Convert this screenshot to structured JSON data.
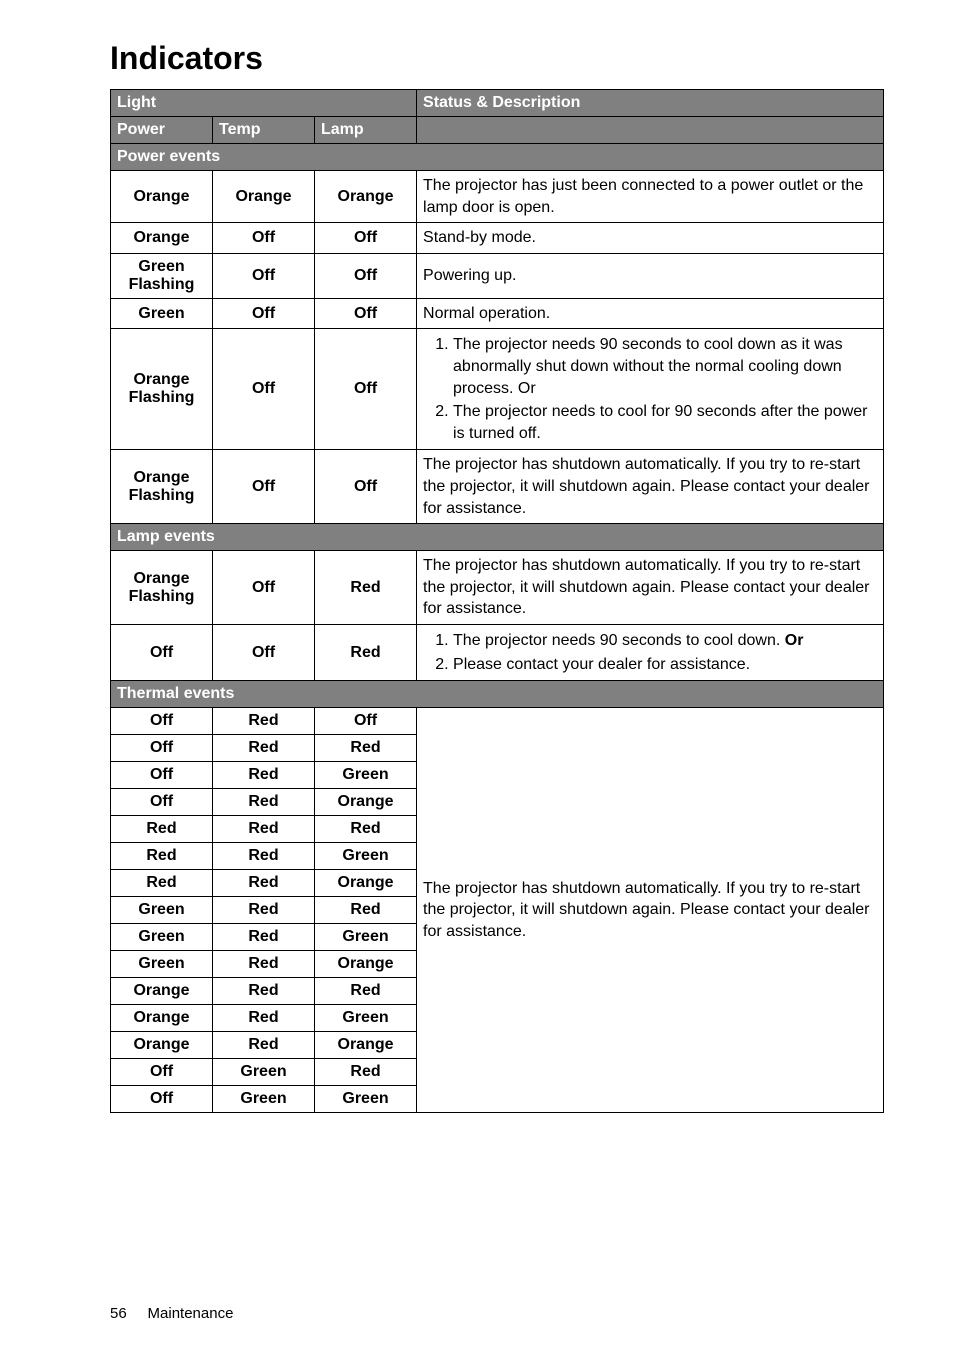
{
  "title": "Indicators",
  "footer": {
    "page_no": "56",
    "chapter": "Maintenance"
  },
  "headers": {
    "light": "Light",
    "status": "Status & Description",
    "power": "Power",
    "temp": "Temp",
    "lamp": "Lamp"
  },
  "sections": {
    "power_events": "Power events",
    "lamp_events": "Lamp events",
    "thermal_events": "Thermal events"
  },
  "power_rows": [
    {
      "p": "Orange",
      "t": "Orange",
      "l": "Orange",
      "d": "The projector has just been connected to a power outlet or the lamp door is open."
    },
    {
      "p": "Orange",
      "t": "Off",
      "l": "Off",
      "d": "Stand-by mode."
    },
    {
      "p": "Green Flashing",
      "t": "Off",
      "l": "Off",
      "d": "Powering up."
    },
    {
      "p": "Green",
      "t": "Off",
      "l": "Off",
      "d": "Normal operation."
    }
  ],
  "power_list_row": {
    "p": "Orange Flashing",
    "t": "Off",
    "l": "Off",
    "items": [
      "The projector needs 90 seconds to cool down as it was abnormally shut down without the normal cooling down process. Or",
      "The projector needs to cool for 90 seconds after the power is turned off."
    ]
  },
  "power_row_last": {
    "p": "Orange Flashing",
    "t": "Off",
    "l": "Off",
    "d": "The projector has shutdown automatically. If you try to re-start the projector, it will shutdown again. Please contact your dealer for assistance."
  },
  "lamp_row1": {
    "p": "Orange Flashing",
    "t": "Off",
    "l": "Red",
    "d": "The projector has shutdown automatically. If you try to re-start the projector, it will shutdown again. Please contact your dealer for assistance."
  },
  "lamp_row2": {
    "p": "Off",
    "t": "Off",
    "l": "Red",
    "i1": "The projector needs 90 seconds to cool down. ",
    "i1b": "Or",
    "i2": "Please contact your dealer for assistance."
  },
  "thermal_desc": "The projector has shutdown automatically. If you try to re-start the projector, it will shutdown again. Please contact your dealer for assistance.",
  "thermal_rows": [
    {
      "p": "Off",
      "t": "Red",
      "l": "Off"
    },
    {
      "p": "Off",
      "t": "Red",
      "l": "Red"
    },
    {
      "p": "Off",
      "t": "Red",
      "l": "Green"
    },
    {
      "p": "Off",
      "t": "Red",
      "l": "Orange"
    },
    {
      "p": "Red",
      "t": "Red",
      "l": "Red"
    },
    {
      "p": "Red",
      "t": "Red",
      "l": "Green"
    },
    {
      "p": "Red",
      "t": "Red",
      "l": "Orange"
    },
    {
      "p": "Green",
      "t": "Red",
      "l": "Red"
    },
    {
      "p": "Green",
      "t": "Red",
      "l": "Green"
    },
    {
      "p": "Green",
      "t": "Red",
      "l": "Orange"
    },
    {
      "p": "Orange",
      "t": "Red",
      "l": "Red"
    },
    {
      "p": "Orange",
      "t": "Red",
      "l": "Green"
    },
    {
      "p": "Orange",
      "t": "Red",
      "l": "Orange"
    },
    {
      "p": "Off",
      "t": "Green",
      "l": "Red"
    },
    {
      "p": "Off",
      "t": "Green",
      "l": "Green"
    }
  ],
  "list_or_row": {
    "label_or": "Or"
  }
}
